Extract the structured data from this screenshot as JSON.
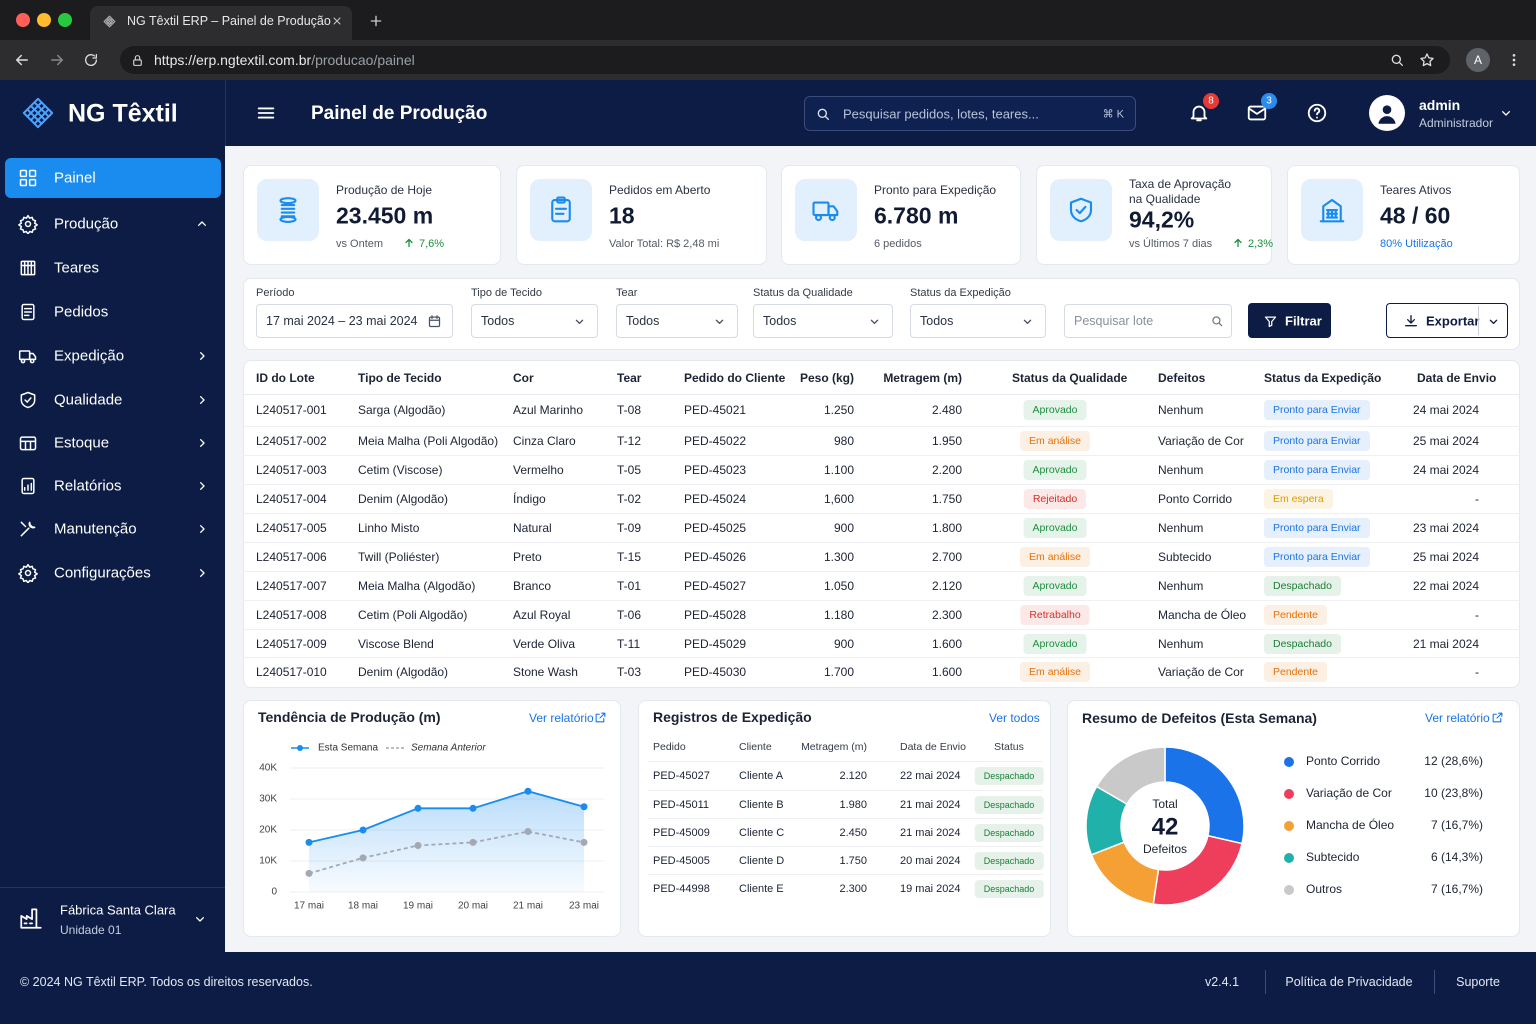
{
  "browser": {
    "tab_title": "NG Têxtil ERP – Painel de Produção",
    "url_host": "https://erp.ngtextil.com.br",
    "url_path": "/producao/painel",
    "profile_initial": "A"
  },
  "header": {
    "brand": "NG Têxtil",
    "page_title": "Painel de Produção",
    "search_placeholder": "Pesquisar pedidos, lotes, teares...",
    "search_shortcut": "⌘ K",
    "notifications": 8,
    "messages": 3,
    "user_name": "admin",
    "user_role": "Administrador"
  },
  "sidebar": {
    "items": [
      "Painel",
      "Produção",
      "Teares",
      "Pedidos",
      "Expedição",
      "Qualidade",
      "Estoque",
      "Relatórios",
      "Manutenção",
      "Configurações"
    ],
    "factory": "Fábrica Santa Clara",
    "unit": "Unidade 01"
  },
  "kpis": [
    {
      "label": "Produção de Hoje",
      "value": "23.450 m",
      "note": "vs Ontem",
      "delta": "7,6%"
    },
    {
      "label": "Pedidos em Aberto",
      "value": "18",
      "note": "Valor Total: R$ 2,48 mi"
    },
    {
      "label": "Pronto para Expedição",
      "value": "6.780 m",
      "note": "6 pedidos"
    },
    {
      "label": "Taxa de Aprovação na Qualidade",
      "value": "94,2%",
      "note": "vs Últimos 7 dias",
      "delta": "2,3%"
    },
    {
      "label": "Teares Ativos",
      "value": "48 / 60",
      "note": "80% Utilização"
    }
  ],
  "filters": {
    "fields": [
      {
        "label": "Período",
        "value": "17 mai 2024 – 23 mai 2024"
      },
      {
        "label": "Tipo de Tecido",
        "value": "Todos"
      },
      {
        "label": "Tear",
        "value": "Todos"
      },
      {
        "label": "Status da Qualidade",
        "value": "Todos"
      },
      {
        "label": "Status da Expedição",
        "value": "Todos"
      }
    ],
    "search_placeholder": "Pesquisar lote",
    "filter_button": "Filtrar",
    "export_button": "Exportar"
  },
  "table": {
    "columns": [
      "ID do Lote",
      "Tipo de Tecido",
      "Cor",
      "Tear",
      "Pedido do Cliente",
      "Peso (kg)",
      "Metragem (m)",
      "Status da Qualidade",
      "Defeitos",
      "Status da Expedição",
      "Data de Envio"
    ],
    "rows": [
      [
        "L240517-001",
        "Sarga (Algodão)",
        "Azul Marinho",
        "T-08",
        "PED-45021",
        "1.250",
        "2.480",
        {
          "text": "Aprovado",
          "color": "#1e8e3e"
        },
        "Nenhum",
        {
          "text": "Pronto para Enviar",
          "color": "#1a73e8"
        },
        "24 mai 2024"
      ],
      [
        "L240517-002",
        "Meia Malha (Poli Algodão)",
        "Cinza Claro",
        "T-12",
        "PED-45022",
        "980",
        "1.950",
        {
          "text": "Em análise",
          "color": "#e8710a"
        },
        "Variação de Cor",
        {
          "text": "Pronto para Enviar",
          "color": "#1a73e8"
        },
        "25 mai 2024"
      ],
      [
        "L240517-003",
        "Cetim (Viscose)",
        "Vermelho",
        "T-05",
        "PED-45023",
        "1.100",
        "2.200",
        {
          "text": "Aprovado",
          "color": "#1e8e3e"
        },
        "Nenhum",
        {
          "text": "Pronto para Enviar",
          "color": "#1a73e8"
        },
        "24 mai 2024"
      ],
      [
        "L240517-004",
        "Denim (Algodão)",
        "Índigo",
        "T-02",
        "PED-45024",
        "1,600",
        "1.750",
        {
          "text": "Rejeitado",
          "color": "#d93025"
        },
        "Ponto Corrido",
        {
          "text": "Em espera",
          "color": "#e09a00"
        },
        "-"
      ],
      [
        "L240517-005",
        "Linho Misto",
        "Natural",
        "T-09",
        "PED-45025",
        "900",
        "1.800",
        {
          "text": "Aprovado",
          "color": "#1e8e3e"
        },
        "Nenhum",
        {
          "text": "Pronto para Enviar",
          "color": "#1a73e8"
        },
        "23 mai 2024"
      ],
      [
        "L240517-006",
        "Twill (Poliéster)",
        "Preto",
        "T-15",
        "PED-45026",
        "1.300",
        "2.700",
        {
          "text": "Em análise",
          "color": "#e8710a"
        },
        "Subtecido",
        {
          "text": "Pronto para Enviar",
          "color": "#1a73e8"
        },
        "25 mai 2024"
      ],
      [
        "L240517-007",
        "Meia Malha (Algodão)",
        "Branco",
        "T-01",
        "PED-45027",
        "1.050",
        "2.120",
        {
          "text": "Aprovado",
          "color": "#1e8e3e"
        },
        "Nenhum",
        {
          "text": "Despachado",
          "color": "#188038"
        },
        "22 mai 2024"
      ],
      [
        "L240517-008",
        "Cetim (Poli Algodão)",
        "Azul Royal",
        "T-06",
        "PED-45028",
        "1.180",
        "2.300",
        {
          "text": "Retrabalho",
          "color": "#d93025"
        },
        "Mancha de Óleo",
        {
          "text": "Pendente",
          "color": "#e8710a"
        },
        "-"
      ],
      [
        "L240517-009",
        "Viscose Blend",
        "Verde Oliva",
        "T-11",
        "PED-45029",
        "900",
        "1.600",
        {
          "text": "Aprovado",
          "color": "#1e8e3e"
        },
        "Nenhum",
        {
          "text": "Despachado",
          "color": "#188038"
        },
        "21 mai 2024"
      ],
      [
        "L240517-010",
        "Denim (Algodão)",
        "Stone Wash",
        "T-03",
        "PED-45030",
        "1.700",
        "1.600",
        {
          "text": "Em análise",
          "color": "#e8710a"
        },
        "Variação de Cor",
        {
          "text": "Pendente",
          "color": "#e8710a"
        },
        "-"
      ]
    ]
  },
  "trend_panel": {
    "link": "Ver relatório"
  },
  "shipping": {
    "title": "Registros de Expedição",
    "link": "Ver todos",
    "columns": [
      "Pedido",
      "Cliente",
      "Metragem (m)",
      "Data de Envio",
      "Status"
    ],
    "rows": [
      [
        "PED-45027",
        "Cliente A",
        "2.120",
        "22 mai 2024",
        {
          "text": "Despachado",
          "color": "#188038"
        }
      ],
      [
        "PED-45011",
        "Cliente B",
        "1.980",
        "21 mai 2024",
        {
          "text": "Despachado",
          "color": "#188038"
        }
      ],
      [
        "PED-45009",
        "Cliente C",
        "2.450",
        "21 mai 2024",
        {
          "text": "Despachado",
          "color": "#188038"
        }
      ],
      [
        "PED-45005",
        "Cliente D",
        "1.750",
        "20 mai 2024",
        {
          "text": "Despachado",
          "color": "#188038"
        }
      ],
      [
        "PED-44998",
        "Cliente E",
        "2.300",
        "19 mai 2024",
        {
          "text": "Despachado",
          "color": "#188038"
        }
      ]
    ]
  },
  "defects_panel": {
    "link": "Ver relatório",
    "total_label": "Total",
    "total": 42,
    "total_unit": "Defeitos"
  },
  "chart_data": [
    {
      "type": "line",
      "title": "Tendência de Produção (m)",
      "categories": [
        "17 mai",
        "18 mai",
        "19 mai",
        "20 mai",
        "21 mai",
        "23 mai"
      ],
      "series": [
        {
          "name": "Esta Semana",
          "color": "#1a8cf0",
          "dashed": false,
          "values": [
            16000,
            20000,
            27000,
            27000,
            32500,
            27500
          ]
        },
        {
          "name": "Semana Anterior",
          "color": "#a3a8b2",
          "dashed": true,
          "values": [
            6000,
            11000,
            15000,
            16000,
            19500,
            16000
          ]
        }
      ],
      "ylim": [
        0,
        40000
      ],
      "yticks": [
        0,
        {
          "value": 10000,
          "label": "10K"
        },
        {
          "value": 20000,
          "label": "20K"
        },
        {
          "value": 30000,
          "label": "30K"
        },
        {
          "value": 40000,
          "label": "40K"
        }
      ],
      "grid": true
    },
    {
      "type": "donut",
      "title": "Resumo de Defeitos (Esta Semana)",
      "categories": [
        "Ponto Corrido",
        "Variação de Cor",
        "Mancha de Óleo",
        "Subtecido",
        "Outros"
      ],
      "values": [
        12,
        10,
        7,
        6,
        7
      ],
      "value_labels": [
        "12 (28,6%)",
        "10 (23,8%)",
        "7 (16,7%)",
        "6 (14,3%)",
        "7 (16,7%)"
      ],
      "colors": [
        "#1a73e8",
        "#ef3e5c",
        "#f5a035",
        "#20b2aa",
        "#c9c9c9"
      ]
    }
  ],
  "footer": {
    "copyright": "© 2024 NG Têxtil ERP. Todos os direitos reservados.",
    "version": "v2.4.1",
    "privacy": "Política de Privacidade",
    "support": "Suporte"
  }
}
